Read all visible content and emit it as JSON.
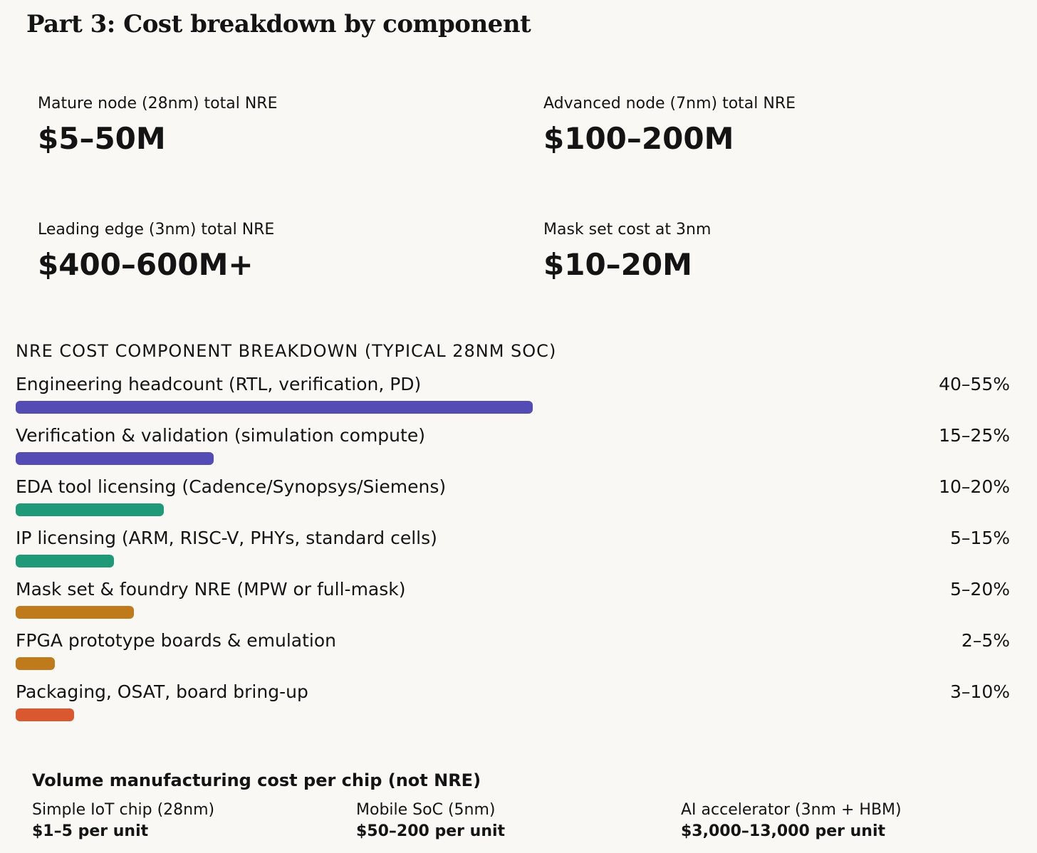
{
  "header": {
    "title": "Part 3: Cost breakdown by component"
  },
  "metrics": [
    {
      "label": "Mature node (28nm) total NRE",
      "value": "$5–50M"
    },
    {
      "label": "Advanced node (7nm) total NRE",
      "value": "$100–200M"
    },
    {
      "label": "Leading edge (3nm) total NRE",
      "value": "$400–600M+"
    },
    {
      "label": "Mask set cost at 3nm",
      "value": "$10–20M"
    }
  ],
  "breakdown": {
    "title": "NRE COST COMPONENT BREAKDOWN (TYPICAL 28NM SOC)",
    "rows": [
      {
        "label": "Engineering headcount (RTL, verification, PD)",
        "value": "40–55%"
      },
      {
        "label": "Verification & validation (simulation compute)",
        "value": "15–25%"
      },
      {
        "label": "EDA tool licensing (Cadence/Synopsys/Siemens)",
        "value": "10–20%"
      },
      {
        "label": "IP licensing (ARM, RISC-V, PHYs, standard cells)",
        "value": "5–15%"
      },
      {
        "label": "Mask set & foundry NRE (MPW or full-mask)",
        "value": "5–20%"
      },
      {
        "label": "FPGA prototype boards & emulation",
        "value": "2–5%"
      },
      {
        "label": "Packaging, OSAT, board bring-up",
        "value": "3–10%"
      }
    ]
  },
  "volume": {
    "title": "Volume manufacturing cost per chip (not NRE)",
    "items": [
      {
        "label": "Simple IoT chip (28nm)",
        "value": "$1–5 per unit"
      },
      {
        "label": "Mobile SoC (5nm)",
        "value": "$50–200 per unit"
      },
      {
        "label": "AI accelerator (3nm + HBM)",
        "value": "$3,000–13,000 per unit"
      }
    ]
  }
}
